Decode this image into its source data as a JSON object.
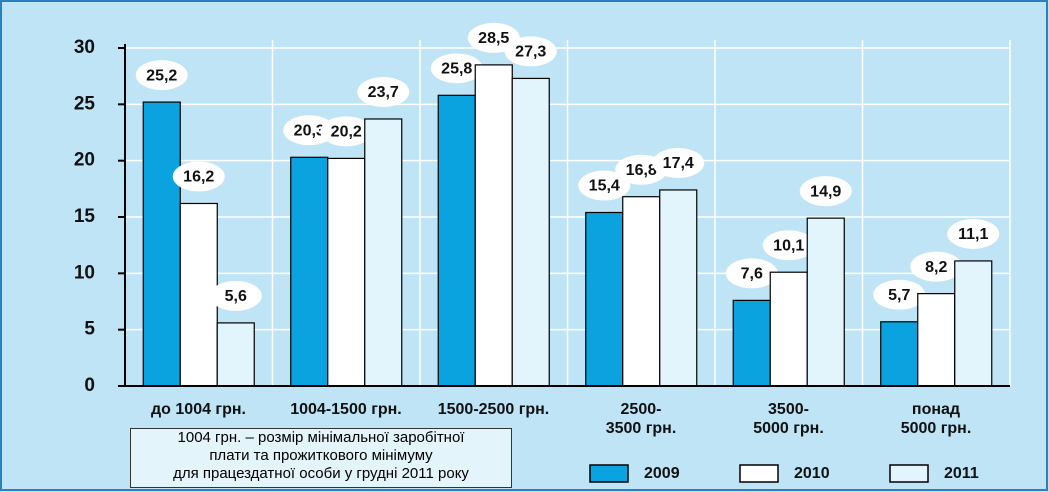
{
  "chart_data": {
    "type": "bar",
    "categories": [
      "до 1004 грн.",
      "1004-1500 грн.",
      "1500-2500 грн.",
      "2500-\n3500 грн.",
      "3500-\n5000 грн.",
      "понад\n5000 грн."
    ],
    "series": [
      {
        "name": "2009",
        "color": "#0aa3df",
        "values": [
          25.2,
          20.3,
          25.8,
          15.4,
          7.6,
          5.7
        ],
        "value_labels": [
          "25,2",
          "20,3",
          "25,8",
          "15,4",
          "7,6",
          "5,7"
        ]
      },
      {
        "name": "2010",
        "color": "#ffffff",
        "values": [
          16.2,
          20.2,
          28.5,
          16.8,
          10.1,
          8.2
        ],
        "value_labels": [
          "16,2",
          "20,2",
          "28,5",
          "16,8",
          "10,1",
          "8,2"
        ]
      },
      {
        "name": "2011",
        "color": "#e2f4fc",
        "values": [
          5.6,
          23.7,
          27.3,
          17.4,
          14.9,
          11.1
        ],
        "value_labels": [
          "5,6",
          "23,7",
          "27,3",
          "17,4",
          "14,9",
          "11,1"
        ]
      }
    ],
    "ylim": [
      0,
      30
    ],
    "yticks": [
      0,
      5,
      10,
      15,
      20,
      25,
      30
    ],
    "grid": true,
    "note": [
      "1004 грн. – розмір мінімальної заробітної",
      "плати та прожиткового мінімуму",
      "для працездатної особи у грудні 2011 року"
    ]
  }
}
